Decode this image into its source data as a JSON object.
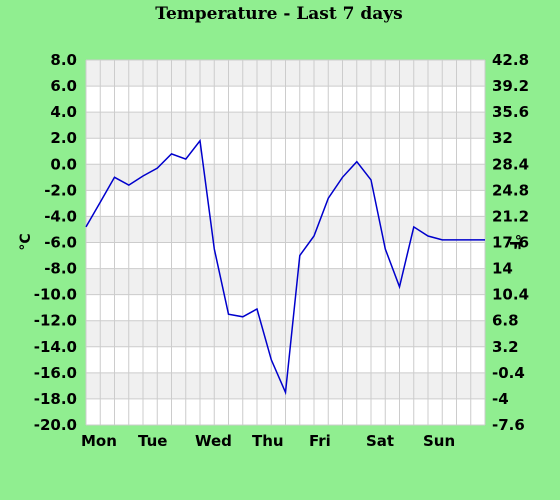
{
  "chart_data": {
    "type": "line",
    "title": "Temperature - Last 7 days",
    "ylabel_left": "°C",
    "ylabel_right": "°F",
    "ylim": [
      -20,
      8
    ],
    "y_ticks_left": [
      "8.0",
      "6.0",
      "4.0",
      "2.0",
      "0.0",
      "-2.0",
      "-4.0",
      "-6.0",
      "-8.0",
      "-10.0",
      "-12.0",
      "-14.0",
      "-16.0",
      "-18.0",
      "-20.0"
    ],
    "y_ticks_right": [
      "42.8",
      "39.2",
      "35.6",
      "32",
      "28.4",
      "24.8",
      "21.2",
      "17.6",
      "14",
      "10.4",
      "6.8",
      "3.2",
      "-0.4",
      "-4",
      "-7.6"
    ],
    "x_range": [
      0,
      28
    ],
    "x_ticks": [
      "Mon",
      "Tue",
      "Wed",
      "Thu",
      "Fri",
      "Sat",
      "Sun"
    ],
    "grid": true,
    "line_color": "#0000CC",
    "series": [
      {
        "x": [
          0,
          1,
          2,
          3,
          4,
          5,
          6,
          7,
          8,
          9,
          10,
          11,
          12,
          13,
          14,
          15,
          16,
          17,
          18,
          19,
          20,
          21,
          22,
          23,
          24,
          25,
          26,
          27,
          28
        ],
        "values": [
          -4.8,
          -2.9,
          -1.0,
          -1.6,
          -0.9,
          -0.3,
          0.8,
          0.4,
          1.8,
          -6.5,
          -11.5,
          -11.7,
          -11.1,
          -15.0,
          -17.5,
          -7.0,
          -5.5,
          -2.6,
          -1.0,
          0.2,
          -1.2,
          -6.5,
          -9.4,
          -4.8,
          -5.5,
          -5.8,
          -5.8,
          -5.8,
          -5.8
        ]
      }
    ]
  }
}
